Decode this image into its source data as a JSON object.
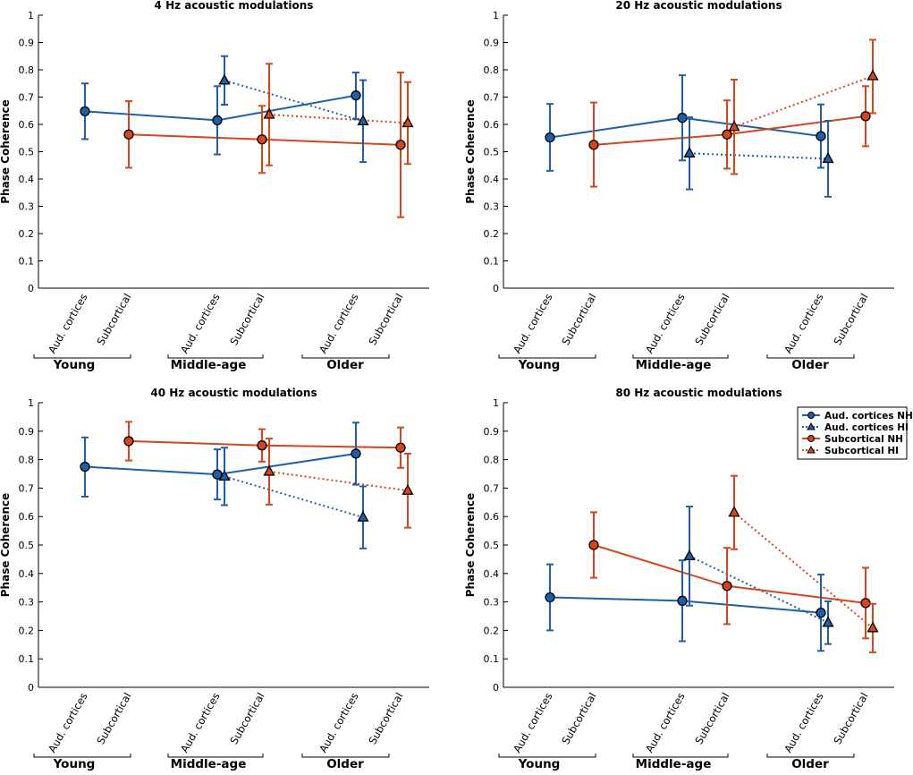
{
  "chart_data": [
    {
      "type": "line",
      "title": "4 Hz acoustic modulations",
      "ylabel": "Phase Coherence",
      "ylim": [
        0,
        1
      ],
      "yticks": [
        "0",
        "0.1",
        "0.2",
        "0.3",
        "0.4",
        "0.5",
        "0.6",
        "0.7",
        "0.8",
        "0.9",
        "1"
      ],
      "x_categories": [
        "Aud. cortices",
        "Subcortical",
        "Aud. cortices",
        "Subcortical",
        "Aud. cortices",
        "Subcortical"
      ],
      "groups": [
        "Young",
        "Middle-age",
        "Older"
      ],
      "series": [
        {
          "name": "Aud. cortices NH",
          "color": "#1f5fa8",
          "marker": "circle",
          "linestyle": "solid",
          "points": [
            {
              "group": "Young",
              "value": 0.648,
              "lo": 0.546,
              "hi": 0.75
            },
            {
              "group": "Middle-age",
              "value": 0.615,
              "lo": 0.49,
              "hi": 0.74
            },
            {
              "group": "Older",
              "value": 0.706,
              "lo": 0.62,
              "hi": 0.79
            }
          ]
        },
        {
          "name": "Aud. cortices HI",
          "color": "#1f5fa8",
          "marker": "triangle",
          "linestyle": "dotted",
          "points": [
            {
              "group": "Middle-age",
              "value": 0.761,
              "lo": 0.672,
              "hi": 0.85
            },
            {
              "group": "Older",
              "value": 0.612,
              "lo": 0.462,
              "hi": 0.762
            }
          ]
        },
        {
          "name": "Subcortical NH",
          "color": "#d4461c",
          "marker": "circle",
          "linestyle": "solid",
          "points": [
            {
              "group": "Young",
              "value": 0.563,
              "lo": 0.441,
              "hi": 0.685
            },
            {
              "group": "Middle-age",
              "value": 0.545,
              "lo": 0.422,
              "hi": 0.668
            },
            {
              "group": "Older",
              "value": 0.525,
              "lo": 0.26,
              "hi": 0.79
            }
          ]
        },
        {
          "name": "Subcortical HI",
          "color": "#d4461c",
          "marker": "triangle",
          "linestyle": "dotted",
          "points": [
            {
              "group": "Middle-age",
              "value": 0.636,
              "lo": 0.45,
              "hi": 0.822
            },
            {
              "group": "Older",
              "value": 0.605,
              "lo": 0.455,
              "hi": 0.755
            }
          ]
        }
      ]
    },
    {
      "type": "line",
      "title": "20 Hz acoustic modulations",
      "ylabel": "Phase Coherence",
      "ylim": [
        0,
        1
      ],
      "yticks": [
        "0",
        "0.1",
        "0.2",
        "0.3",
        "0.4",
        "0.5",
        "0.6",
        "0.7",
        "0.8",
        "0.9",
        "1"
      ],
      "x_categories": [
        "Aud. cortices",
        "Subcortical",
        "Aud. cortices",
        "Subcortical",
        "Aud. cortices",
        "Subcortical"
      ],
      "groups": [
        "Young",
        "Middle-age",
        "Older"
      ],
      "series": [
        {
          "name": "Aud. cortices NH",
          "color": "#1f5fa8",
          "marker": "circle",
          "linestyle": "solid",
          "points": [
            {
              "group": "Young",
              "value": 0.552,
              "lo": 0.43,
              "hi": 0.675
            },
            {
              "group": "Middle-age",
              "value": 0.624,
              "lo": 0.468,
              "hi": 0.78
            },
            {
              "group": "Older",
              "value": 0.557,
              "lo": 0.441,
              "hi": 0.673
            }
          ]
        },
        {
          "name": "Aud. cortices HI",
          "color": "#1f5fa8",
          "marker": "triangle",
          "linestyle": "dotted",
          "points": [
            {
              "group": "Middle-age",
              "value": 0.494,
              "lo": 0.362,
              "hi": 0.626
            },
            {
              "group": "Older",
              "value": 0.474,
              "lo": 0.335,
              "hi": 0.613
            }
          ]
        },
        {
          "name": "Subcortical NH",
          "color": "#d4461c",
          "marker": "circle",
          "linestyle": "solid",
          "points": [
            {
              "group": "Young",
              "value": 0.525,
              "lo": 0.372,
              "hi": 0.68
            },
            {
              "group": "Middle-age",
              "value": 0.563,
              "lo": 0.438,
              "hi": 0.688
            },
            {
              "group": "Older",
              "value": 0.63,
              "lo": 0.52,
              "hi": 0.74
            }
          ]
        },
        {
          "name": "Subcortical HI",
          "color": "#d4461c",
          "marker": "triangle",
          "linestyle": "dotted",
          "points": [
            {
              "group": "Middle-age",
              "value": 0.591,
              "lo": 0.418,
              "hi": 0.764
            },
            {
              "group": "Older",
              "value": 0.777,
              "lo": 0.641,
              "hi": 0.91
            }
          ]
        }
      ]
    },
    {
      "type": "line",
      "title": "40 Hz acoustic modulations",
      "ylabel": "Phase Coherence",
      "ylim": [
        0,
        1
      ],
      "yticks": [
        "0",
        "0.1",
        "0.2",
        "0.3",
        "0.4",
        "0.5",
        "0.6",
        "0.7",
        "0.8",
        "0.9",
        "1"
      ],
      "x_categories": [
        "Aud. cortices",
        "Subcortical",
        "Aud. cortices",
        "Subcortical",
        "Aud. cortices",
        "Subcortical"
      ],
      "groups": [
        "Young",
        "Middle-age",
        "Older"
      ],
      "series": [
        {
          "name": "Aud. cortices NH",
          "color": "#1f5fa8",
          "marker": "circle",
          "linestyle": "solid",
          "points": [
            {
              "group": "Young",
              "value": 0.775,
              "lo": 0.67,
              "hi": 0.878
            },
            {
              "group": "Middle-age",
              "value": 0.748,
              "lo": 0.66,
              "hi": 0.836
            },
            {
              "group": "Older",
              "value": 0.821,
              "lo": 0.712,
              "hi": 0.93
            }
          ]
        },
        {
          "name": "Aud. cortices HI",
          "color": "#1f5fa8",
          "marker": "triangle",
          "linestyle": "dotted",
          "points": [
            {
              "group": "Middle-age",
              "value": 0.741,
              "lo": 0.64,
              "hi": 0.842
            },
            {
              "group": "Older",
              "value": 0.597,
              "lo": 0.488,
              "hi": 0.706
            }
          ]
        },
        {
          "name": "Subcortical NH",
          "color": "#d4461c",
          "marker": "circle",
          "linestyle": "solid",
          "points": [
            {
              "group": "Young",
              "value": 0.865,
              "lo": 0.797,
              "hi": 0.933
            },
            {
              "group": "Middle-age",
              "value": 0.85,
              "lo": 0.793,
              "hi": 0.907
            },
            {
              "group": "Older",
              "value": 0.842,
              "lo": 0.771,
              "hi": 0.913
            }
          ]
        },
        {
          "name": "Subcortical HI",
          "color": "#d4461c",
          "marker": "triangle",
          "linestyle": "dotted",
          "points": [
            {
              "group": "Middle-age",
              "value": 0.758,
              "lo": 0.642,
              "hi": 0.874
            },
            {
              "group": "Older",
              "value": 0.691,
              "lo": 0.561,
              "hi": 0.821
            }
          ]
        }
      ]
    },
    {
      "type": "line",
      "title": "80 Hz acoustic modulations",
      "ylabel": "Phase Coherence",
      "ylim": [
        0,
        1
      ],
      "yticks": [
        "0",
        "0.1",
        "0.2",
        "0.3",
        "0.4",
        "0.5",
        "0.6",
        "0.7",
        "0.8",
        "0.9",
        "1"
      ],
      "x_categories": [
        "Aud. cortices",
        "Subcortical",
        "Aud. cortices",
        "Subcortical",
        "Aud. cortices",
        "Subcortical"
      ],
      "groups": [
        "Young",
        "Middle-age",
        "Older"
      ],
      "legend": {
        "position": "top-right",
        "entries": [
          "Aud. cortices NH",
          "Aud. cortices HI",
          "Subcortical NH",
          "Subcortical HI"
        ]
      },
      "series": [
        {
          "name": "Aud. cortices NH",
          "color": "#1f5fa8",
          "marker": "circle",
          "linestyle": "solid",
          "points": [
            {
              "group": "Young",
              "value": 0.316,
              "lo": 0.2,
              "hi": 0.432
            },
            {
              "group": "Middle-age",
              "value": 0.304,
              "lo": 0.162,
              "hi": 0.446
            },
            {
              "group": "Older",
              "value": 0.262,
              "lo": 0.128,
              "hi": 0.396
            }
          ]
        },
        {
          "name": "Aud. cortices HI",
          "color": "#1f5fa8",
          "marker": "triangle",
          "linestyle": "dotted",
          "points": [
            {
              "group": "Middle-age",
              "value": 0.461,
              "lo": 0.287,
              "hi": 0.635
            },
            {
              "group": "Older",
              "value": 0.227,
              "lo": 0.152,
              "hi": 0.302
            }
          ]
        },
        {
          "name": "Subcortical NH",
          "color": "#d4461c",
          "marker": "circle",
          "linestyle": "solid",
          "points": [
            {
              "group": "Young",
              "value": 0.5,
              "lo": 0.385,
              "hi": 0.615
            },
            {
              "group": "Middle-age",
              "value": 0.356,
              "lo": 0.222,
              "hi": 0.49
            },
            {
              "group": "Older",
              "value": 0.296,
              "lo": 0.172,
              "hi": 0.42
            }
          ]
        },
        {
          "name": "Subcortical HI",
          "color": "#d4461c",
          "marker": "triangle",
          "linestyle": "dotted",
          "points": [
            {
              "group": "Middle-age",
              "value": 0.614,
              "lo": 0.485,
              "hi": 0.743
            },
            {
              "group": "Older",
              "value": 0.208,
              "lo": 0.123,
              "hi": 0.293
            }
          ]
        }
      ]
    }
  ]
}
